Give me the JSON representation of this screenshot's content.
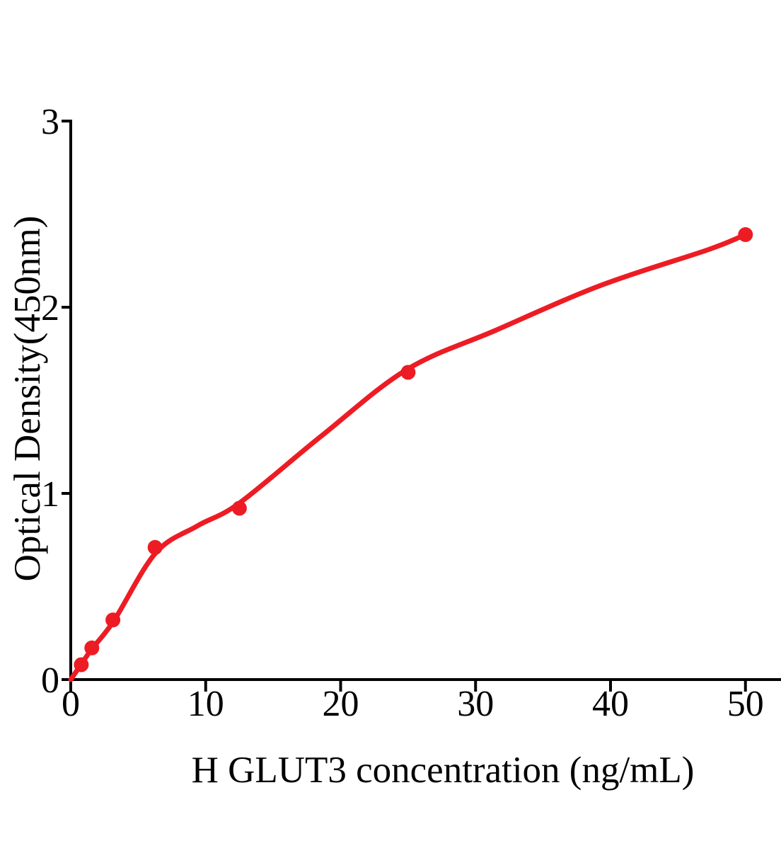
{
  "chart_data": {
    "type": "scatter",
    "title": "",
    "xlabel": "H GLUT3 concentration (ng/mL)",
    "ylabel": "Optical Density(450nm)",
    "xlim": [
      0,
      52.6
    ],
    "ylim": [
      0,
      3
    ],
    "grid": false,
    "legend": false,
    "x_ticks": [
      0,
      10,
      20,
      30,
      40,
      50
    ],
    "x_tick_labels": [
      "0",
      "10",
      "20",
      "30",
      "40",
      "50"
    ],
    "y_ticks": [
      0,
      1,
      2,
      3
    ],
    "y_tick_labels": [
      "0",
      "1",
      "2",
      "3"
    ],
    "point_color": "#ED1C24",
    "curve_color": "#ED1C24",
    "axis_color": "#000000",
    "series": [
      {
        "name": "standard-points",
        "type": "scatter",
        "x": [
          0.78,
          1.56,
          3.125,
          6.25,
          12.5,
          25,
          50
        ],
        "y": [
          0.08,
          0.17,
          0.32,
          0.71,
          0.92,
          1.65,
          2.39
        ]
      },
      {
        "name": "fitted-curve",
        "type": "line",
        "x": [
          0,
          0.85,
          1.57,
          3.2,
          6.29,
          9.38,
          12.48,
          18.5,
          24.9,
          31.46,
          39.3,
          47.2,
          50
        ],
        "y": [
          0,
          0.09,
          0.165,
          0.316,
          0.68,
          0.825,
          0.947,
          1.304,
          1.665,
          1.875,
          2.118,
          2.308,
          2.39
        ]
      }
    ]
  }
}
